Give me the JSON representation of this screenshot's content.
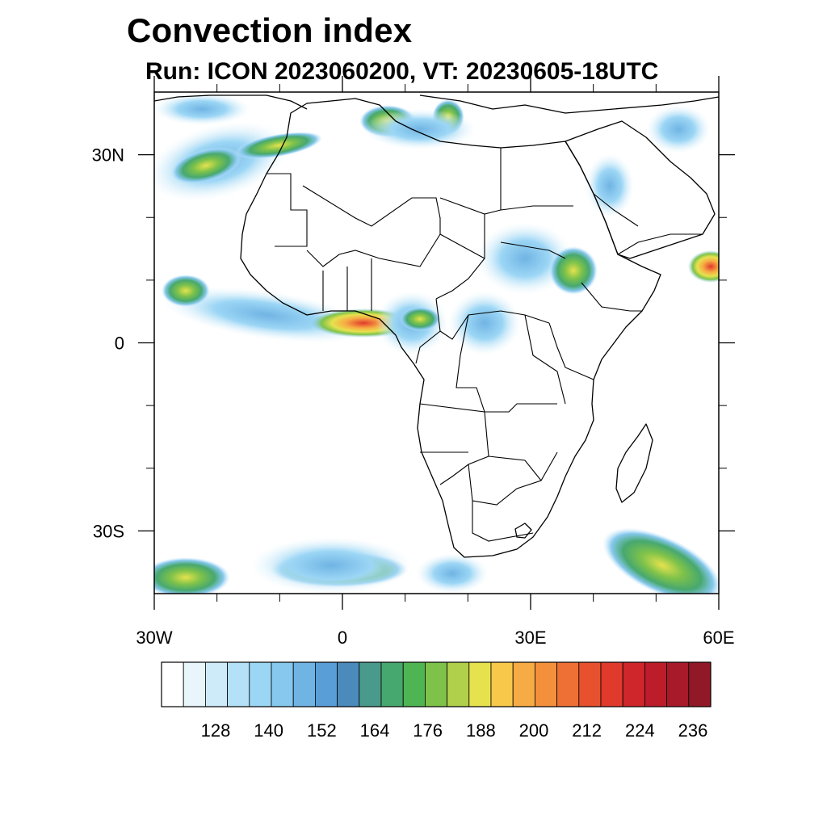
{
  "title": "Convection index",
  "subtitle": "Run: ICON 2023060200,  VT: 20230605-18UTC",
  "map": {
    "lon_range": [
      -30,
      60
    ],
    "lat_range": [
      -40,
      40
    ],
    "lon_ticks": [
      {
        "value": -30,
        "label": "30W"
      },
      {
        "value": 0,
        "label": "0"
      },
      {
        "value": 30,
        "label": "30E"
      },
      {
        "value": 60,
        "label": "60E"
      }
    ],
    "lat_ticks": [
      {
        "value": 30,
        "label": "30N"
      },
      {
        "value": 0,
        "label": "0"
      },
      {
        "value": -30,
        "label": "30S"
      }
    ],
    "minor_lon_ticks": [
      -20,
      -10,
      10,
      20,
      40,
      50
    ],
    "minor_lat_ticks": [
      20,
      10,
      -10,
      -20
    ]
  },
  "colorbar": {
    "colors": [
      "#ffffff",
      "#e8f6fc",
      "#cdebf9",
      "#b4e1f7",
      "#9cd6f5",
      "#86c8ee",
      "#70b4e4",
      "#5a9ed8",
      "#4a8bbc",
      "#4a9a8c",
      "#47a86f",
      "#4fb553",
      "#7ec24a",
      "#b0cf4a",
      "#e6e24e",
      "#f8c84a",
      "#f7ab44",
      "#f4903c",
      "#ef7034",
      "#e8512e",
      "#e03a2c",
      "#cf262b",
      "#bd1d2a",
      "#a8192a",
      "#901827"
    ],
    "labels": [
      "128",
      "140",
      "152",
      "164",
      "176",
      "188",
      "200",
      "212",
      "224",
      "236"
    ]
  }
}
